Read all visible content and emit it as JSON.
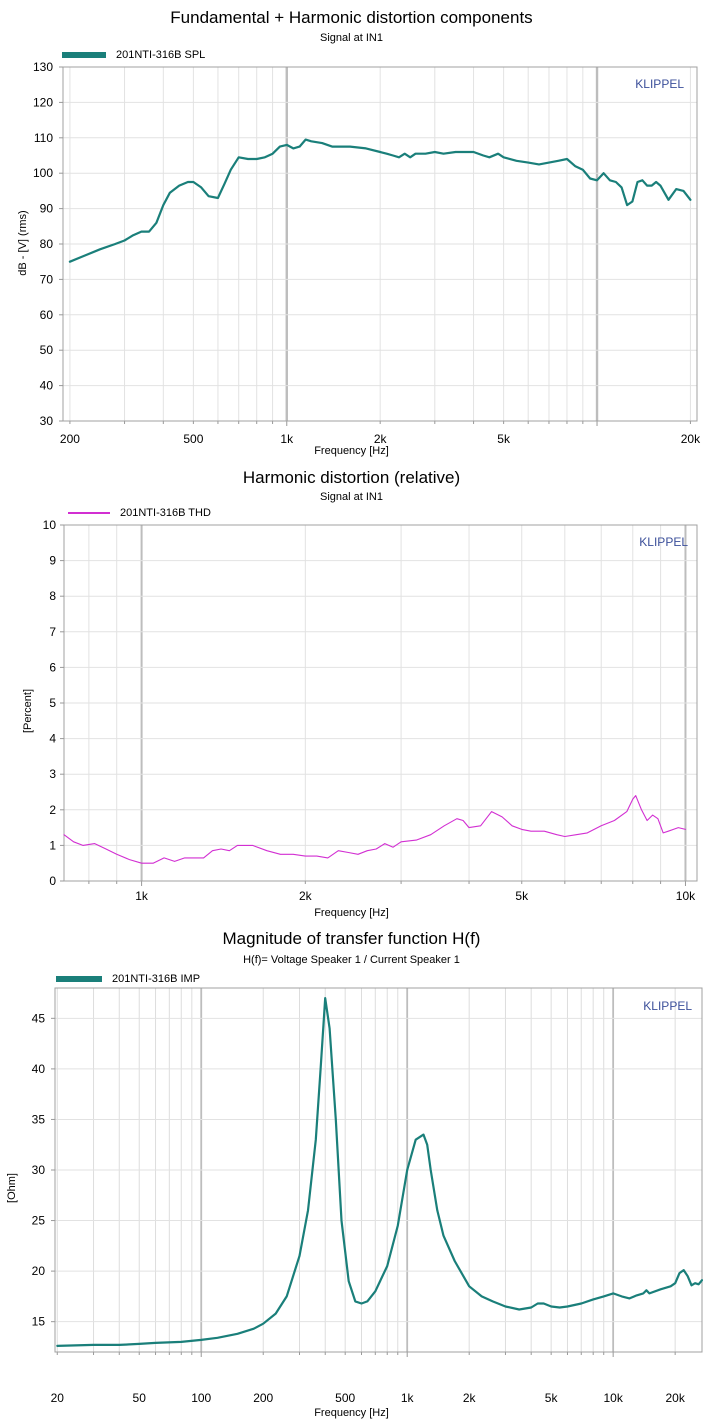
{
  "chart_data": [
    {
      "type": "line",
      "title": "Fundamental + Harmonic distortion components",
      "subtitle": "Signal at IN1",
      "xlabel": "Frequency [Hz]",
      "ylabel": "dB - [V] (rms)",
      "xscale": "log",
      "xlim": [
        190,
        21000
      ],
      "ylim": [
        30,
        130
      ],
      "grid": true,
      "legend_position": "top-left",
      "watermark": "KLIPPEL",
      "color": "#1a7f7a",
      "x_ticks": [
        {
          "value": 200,
          "label": "200"
        },
        {
          "value": 500,
          "label": "500"
        },
        {
          "value": 1000,
          "label": "1k"
        },
        {
          "value": 2000,
          "label": "2k"
        },
        {
          "value": 5000,
          "label": "5k"
        },
        {
          "value": 20000,
          "label": "20k"
        }
      ],
      "y_ticks": [
        30,
        40,
        50,
        60,
        70,
        80,
        90,
        100,
        110,
        120,
        130
      ],
      "series": [
        {
          "name": "201NTI-316B SPL",
          "x": [
            200,
            220,
            250,
            280,
            300,
            320,
            340,
            360,
            380,
            400,
            420,
            450,
            480,
            500,
            530,
            560,
            600,
            630,
            660,
            700,
            750,
            800,
            850,
            900,
            950,
            1000,
            1050,
            1100,
            1150,
            1200,
            1300,
            1400,
            1500,
            1600,
            1800,
            2000,
            2100,
            2200,
            2300,
            2400,
            2500,
            2600,
            2800,
            3000,
            3200,
            3500,
            3800,
            4000,
            4300,
            4500,
            4800,
            5000,
            5500,
            6000,
            6500,
            7000,
            7500,
            8000,
            8500,
            9000,
            9500,
            10000,
            10500,
            11000,
            11500,
            12000,
            12500,
            13000,
            13500,
            14000,
            14500,
            15000,
            15500,
            16000,
            17000,
            18000,
            19000,
            20000
          ],
          "values": [
            75,
            76.5,
            78.5,
            80,
            81,
            82.5,
            83.5,
            83.5,
            86,
            91,
            94.5,
            96.5,
            97.5,
            97.5,
            96,
            93.5,
            93,
            97,
            101,
            104.5,
            104,
            104,
            104.5,
            105.5,
            107.5,
            108,
            107,
            107.5,
            109.5,
            109,
            108.5,
            107.5,
            107.5,
            107.5,
            107,
            106,
            105.5,
            105,
            104.5,
            105.5,
            104.5,
            105.5,
            105.5,
            106,
            105.5,
            106,
            106,
            106,
            105,
            104.5,
            105.5,
            104.5,
            103.5,
            103,
            102.5,
            103,
            103.5,
            104,
            102,
            101,
            98.5,
            98,
            100,
            98,
            97.5,
            96,
            91,
            92,
            97.5,
            98,
            96.5,
            96.5,
            97.5,
            96.5,
            92.5,
            95.5,
            95,
            92.5
          ]
        }
      ]
    },
    {
      "type": "line",
      "title": "Harmonic distortion (relative)",
      "subtitle": "Signal at IN1",
      "xlabel": "Frequency [Hz]",
      "ylabel": "[Percent]",
      "xscale": "log",
      "xlim": [
        720,
        10500
      ],
      "ylim": [
        0,
        10
      ],
      "grid": true,
      "legend_position": "top-left",
      "watermark": "KLIPPEL",
      "color": "#d22fd2",
      "x_ticks": [
        {
          "value": 1000,
          "label": "1k"
        },
        {
          "value": 2000,
          "label": "2k"
        },
        {
          "value": 5000,
          "label": "5k"
        },
        {
          "value": 10000,
          "label": "10k"
        }
      ],
      "y_ticks": [
        0,
        1,
        2,
        3,
        4,
        5,
        6,
        7,
        8,
        9,
        10
      ],
      "series": [
        {
          "name": "201NTI-316B THD",
          "x": [
            720,
            750,
            780,
            820,
            860,
            900,
            950,
            1000,
            1050,
            1100,
            1150,
            1200,
            1300,
            1350,
            1400,
            1450,
            1500,
            1600,
            1700,
            1800,
            1900,
            2000,
            2100,
            2200,
            2300,
            2400,
            2500,
            2600,
            2700,
            2800,
            2900,
            3000,
            3200,
            3400,
            3600,
            3800,
            3900,
            4000,
            4200,
            4400,
            4600,
            4800,
            5000,
            5200,
            5500,
            5800,
            6000,
            6300,
            6600,
            7000,
            7400,
            7800,
            8000,
            8100,
            8300,
            8500,
            8700,
            8900,
            9100,
            9300,
            9500,
            9700,
            10000
          ],
          "values": [
            1.3,
            1.1,
            1.0,
            1.05,
            0.9,
            0.75,
            0.6,
            0.5,
            0.5,
            0.65,
            0.55,
            0.65,
            0.65,
            0.85,
            0.9,
            0.85,
            1.0,
            1.0,
            0.85,
            0.75,
            0.75,
            0.7,
            0.7,
            0.65,
            0.85,
            0.8,
            0.75,
            0.85,
            0.9,
            1.05,
            0.95,
            1.1,
            1.15,
            1.3,
            1.55,
            1.75,
            1.7,
            1.5,
            1.55,
            1.95,
            1.8,
            1.55,
            1.45,
            1.4,
            1.4,
            1.3,
            1.25,
            1.3,
            1.35,
            1.55,
            1.7,
            1.95,
            2.3,
            2.4,
            2.0,
            1.7,
            1.85,
            1.75,
            1.35,
            1.4,
            1.45,
            1.5,
            1.45
          ]
        }
      ]
    },
    {
      "type": "line",
      "title": "Magnitude of transfer function H(f)",
      "subtitle": "H(f)= Voltage Speaker 1 / Current Speaker 1",
      "xlabel": "Frequency [Hz]",
      "ylabel": "[Ohm]",
      "xscale": "log",
      "xlim": [
        19.5,
        27000
      ],
      "ylim": [
        12,
        48
      ],
      "grid": true,
      "legend_position": "top-left",
      "watermark": "KLIPPEL",
      "color": "#1a7f7a",
      "x_ticks": [
        {
          "value": 20,
          "label": "20"
        },
        {
          "value": 50,
          "label": "50"
        },
        {
          "value": 100,
          "label": "100"
        },
        {
          "value": 200,
          "label": "200"
        },
        {
          "value": 500,
          "label": "500"
        },
        {
          "value": 1000,
          "label": "1k"
        },
        {
          "value": 2000,
          "label": "2k"
        },
        {
          "value": 5000,
          "label": "5k"
        },
        {
          "value": 10000,
          "label": "10k"
        },
        {
          "value": 20000,
          "label": "20k"
        }
      ],
      "y_ticks": [
        15,
        20,
        25,
        30,
        35,
        40,
        45
      ],
      "series": [
        {
          "name": "201NTI-316B IMP",
          "x": [
            20,
            30,
            40,
            50,
            60,
            80,
            100,
            120,
            150,
            180,
            200,
            230,
            260,
            300,
            330,
            360,
            380,
            400,
            420,
            450,
            480,
            520,
            560,
            600,
            640,
            700,
            800,
            900,
            1000,
            1100,
            1200,
            1250,
            1300,
            1400,
            1500,
            1700,
            2000,
            2300,
            2600,
            3000,
            3500,
            4000,
            4300,
            4600,
            5000,
            5500,
            6000,
            7000,
            8000,
            9000,
            10000,
            11000,
            12000,
            13000,
            14000,
            14500,
            15000,
            17000,
            19000,
            20000,
            21000,
            22000,
            23000,
            24000,
            25000,
            26000,
            27000
          ],
          "values": [
            12.6,
            12.7,
            12.7,
            12.8,
            12.9,
            13.0,
            13.2,
            13.4,
            13.8,
            14.3,
            14.8,
            15.8,
            17.5,
            21.5,
            26.0,
            33.0,
            40.0,
            47.0,
            44.0,
            35.0,
            25.0,
            19.0,
            17.0,
            16.8,
            17.0,
            18.0,
            20.5,
            24.5,
            30.0,
            33.0,
            33.5,
            32.5,
            30.0,
            26.0,
            23.5,
            21.0,
            18.5,
            17.5,
            17.0,
            16.5,
            16.2,
            16.4,
            16.8,
            16.8,
            16.5,
            16.4,
            16.5,
            16.8,
            17.2,
            17.5,
            17.8,
            17.5,
            17.3,
            17.6,
            17.8,
            18.1,
            17.8,
            18.2,
            18.5,
            18.8,
            19.8,
            20.1,
            19.5,
            18.6,
            18.8,
            18.7,
            19.1
          ]
        }
      ]
    }
  ]
}
